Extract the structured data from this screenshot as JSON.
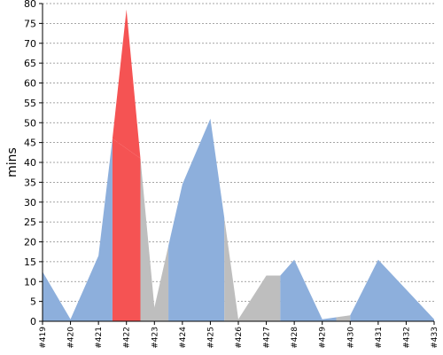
{
  "chart_data": {
    "type": "area",
    "title": "",
    "xlabel": "",
    "ylabel": "mins",
    "ylim": [
      0,
      80
    ],
    "yticks": [
      0,
      5,
      10,
      15,
      20,
      25,
      30,
      35,
      40,
      45,
      50,
      55,
      60,
      65,
      70,
      75,
      80
    ],
    "grid": true,
    "categories": [
      "#419",
      "#420",
      "#421",
      "#422",
      "#423",
      "#424",
      "#425",
      "#426",
      "#427",
      "#428",
      "#429",
      "#430",
      "#431",
      "#432",
      "#433"
    ],
    "values": [
      12.5,
      0.5,
      16.5,
      46.0,
      41.0,
      3.5,
      19.0,
      34.5,
      51.0,
      26.0,
      0.5,
      11.5,
      11.5,
      15.5,
      0.5,
      1.5,
      15.5,
      0.5
    ],
    "x": [
      0,
      1,
      2,
      2.5,
      3.5,
      4,
      4.5,
      5,
      6,
      6.5,
      7,
      8,
      8.5,
      9,
      10,
      11,
      12,
      14
    ],
    "peak": {
      "x": 3,
      "value": 78.5
    },
    "colors": {
      "success": "#8dafdc",
      "failure": "#f55353",
      "unstable": "#bebebe",
      "grid": "#888888",
      "axis": "#000000"
    },
    "segments": [
      {
        "from": 0,
        "to": 2.5,
        "status": "success"
      },
      {
        "from": 2.5,
        "to": 3.5,
        "status": "failure"
      },
      {
        "from": 3.5,
        "to": 4.5,
        "status": "unstable"
      },
      {
        "from": 4.5,
        "to": 6.5,
        "status": "success"
      },
      {
        "from": 6.5,
        "to": 8.5,
        "status": "unstable"
      },
      {
        "from": 8.5,
        "to": 10.5,
        "status": "success"
      },
      {
        "from": 10.5,
        "to": 11,
        "status": "unstable"
      },
      {
        "from": 11,
        "to": 14,
        "status": "success"
      }
    ]
  }
}
